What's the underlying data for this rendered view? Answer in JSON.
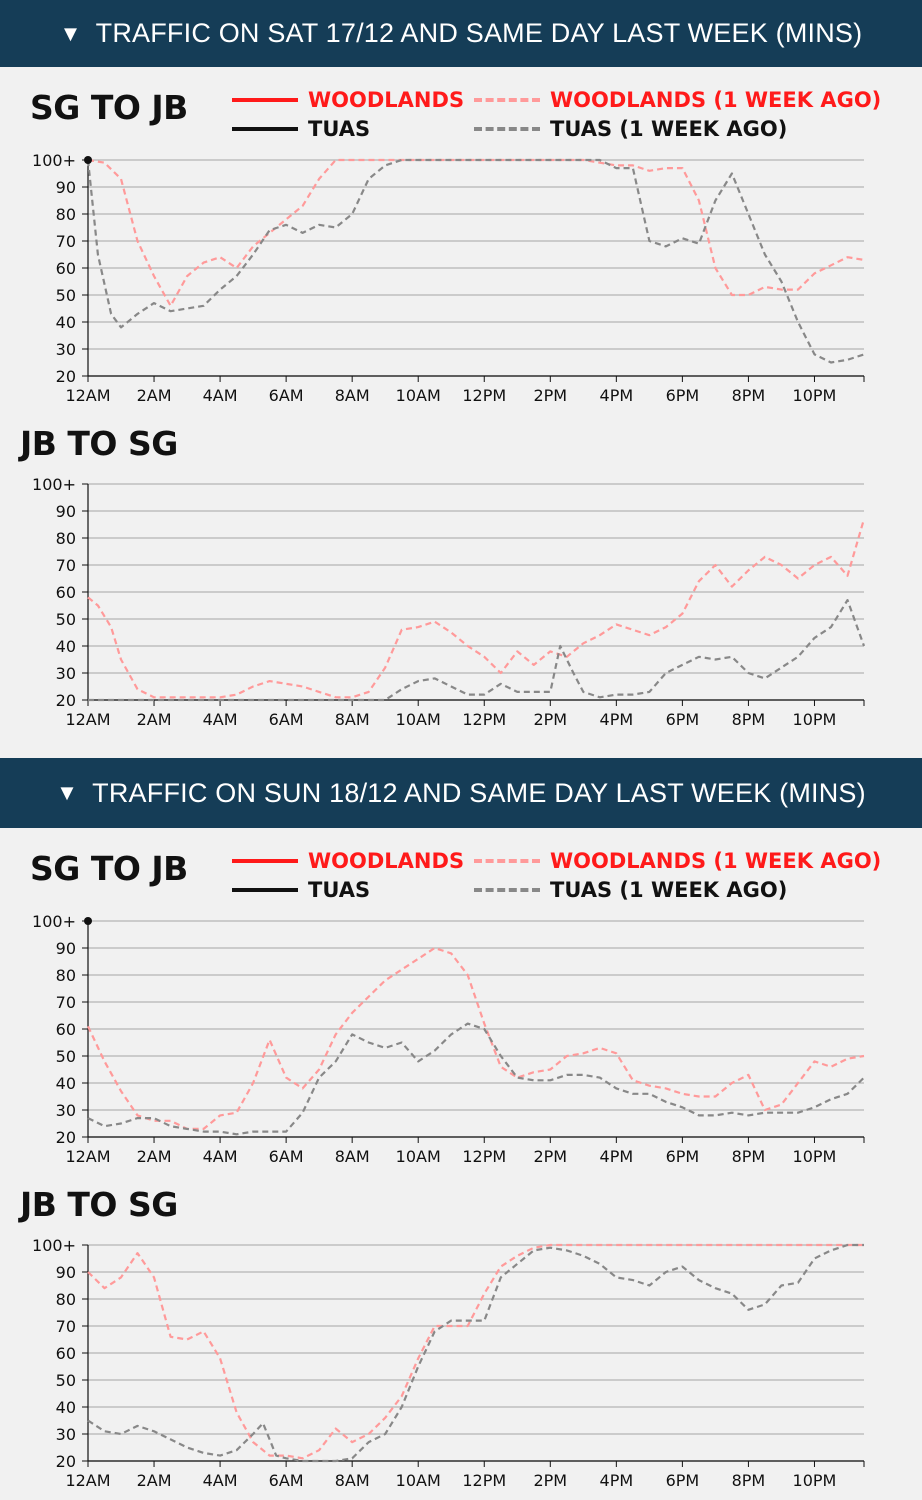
{
  "banners": [
    {
      "text": "TRAFFIC ON SAT 17/12 AND SAME DAY LAST WEEK (MINS)"
    },
    {
      "text": "TRAFFIC ON SUN 18/12 AND SAME DAY LAST WEEK (MINS)"
    }
  ],
  "legend": {
    "woodlands": "WOODLANDS",
    "woodlands_prev": "WOODLANDS (1 WEEK AGO)",
    "tuas": "TUAS",
    "tuas_prev": "TUAS (1 WEEK AGO)"
  },
  "colors": {
    "woodlands": "#ff1a1a",
    "woodlands_prev": "#ff9a9a",
    "tuas": "#111111",
    "tuas_prev": "#888888"
  },
  "chart_data": [
    {
      "type": "line",
      "day": "sat",
      "title": "SG TO JB",
      "ylim": [
        20,
        100
      ],
      "yticks": [
        "20",
        "30",
        "40",
        "50",
        "60",
        "70",
        "80",
        "90",
        "100+"
      ],
      "xticks": [
        "12AM",
        "2AM",
        "4AM",
        "6AM",
        "8AM",
        "10AM",
        "12PM",
        "2PM",
        "4PM",
        "6PM",
        "8PM",
        "10PM"
      ],
      "series": [
        {
          "name": "WOODLANDS (1 WEEK AGO)",
          "x": [
            0,
            0.5,
            1,
            1.5,
            2,
            2.5,
            3,
            3.5,
            4,
            4.5,
            5,
            5.5,
            6,
            6.5,
            7,
            7.5,
            8,
            8.5,
            9,
            10,
            11,
            12,
            13,
            14,
            15,
            15.5,
            16,
            16.5,
            17,
            17.5,
            18,
            18.5,
            19,
            19.5,
            20,
            20.5,
            21,
            21.5,
            22,
            22.5,
            23,
            23.5
          ],
          "y": [
            100,
            99,
            93,
            70,
            57,
            46,
            57,
            62,
            64,
            60,
            68,
            73,
            78,
            83,
            93,
            100,
            100,
            100,
            100,
            100,
            100,
            100,
            100,
            100,
            100,
            99,
            98,
            98,
            96,
            97,
            97,
            85,
            60,
            50,
            50,
            53,
            52,
            52,
            58,
            61,
            64,
            63
          ]
        },
        {
          "name": "TUAS (1 WEEK AGO)",
          "x": [
            0,
            0.3,
            0.7,
            1,
            1.5,
            2,
            2.5,
            3,
            3.5,
            4,
            4.5,
            5,
            5.5,
            6,
            6.5,
            7,
            7.5,
            8,
            8.5,
            9,
            9.5,
            10,
            12,
            14,
            15,
            15.5,
            16,
            16.5,
            17,
            17.5,
            18,
            18.5,
            19,
            19.5,
            20,
            20.5,
            21,
            21.5,
            22,
            22.5,
            23,
            23.5
          ],
          "y": [
            100,
            65,
            43,
            38,
            43,
            47,
            44,
            45,
            46,
            52,
            57,
            65,
            74,
            76,
            73,
            76,
            75,
            80,
            93,
            98,
            100,
            100,
            100,
            100,
            100,
            100,
            97,
            97,
            70,
            68,
            71,
            69,
            85,
            95,
            80,
            65,
            55,
            40,
            28,
            25,
            26,
            28
          ]
        }
      ]
    },
    {
      "type": "line",
      "day": "sat",
      "title": "JB TO SG",
      "ylim": [
        20,
        100
      ],
      "yticks": [
        "20",
        "30",
        "40",
        "50",
        "60",
        "70",
        "80",
        "90",
        "100+"
      ],
      "xticks": [
        "12AM",
        "2AM",
        "4AM",
        "6AM",
        "8AM",
        "10AM",
        "12PM",
        "2PM",
        "4PM",
        "6PM",
        "8PM",
        "10PM"
      ],
      "series": [
        {
          "name": "WOODLANDS (1 WEEK AGO)",
          "x": [
            0,
            0.3,
            0.7,
            1,
            1.5,
            2,
            3,
            4,
            4.5,
            5,
            5.5,
            6,
            6.5,
            7,
            7.5,
            8,
            8.5,
            9,
            9.5,
            10,
            10.5,
            11,
            11.5,
            12,
            12.5,
            13,
            13.5,
            14,
            14.5,
            15,
            15.5,
            16,
            16.5,
            17,
            17.5,
            18,
            18.5,
            19,
            19.5,
            20,
            20.5,
            21,
            21.5,
            22,
            22.5,
            23,
            23.5
          ],
          "y": [
            58,
            55,
            47,
            35,
            24,
            21,
            21,
            21,
            22,
            25,
            27,
            26,
            25,
            23,
            21,
            21,
            23,
            32,
            46,
            47,
            49,
            45,
            40,
            36,
            30,
            38,
            33,
            38,
            36,
            41,
            44,
            48,
            46,
            44,
            47,
            52,
            64,
            70,
            62,
            68,
            73,
            70,
            65,
            70,
            73,
            66,
            87
          ]
        },
        {
          "name": "TUAS (1 WEEK AGO)",
          "x": [
            0,
            2,
            4,
            6,
            8,
            9,
            9.5,
            10,
            10.5,
            11,
            11.5,
            12,
            12.5,
            13,
            13.5,
            14,
            14.3,
            14.7,
            15,
            15.5,
            16,
            16.5,
            17,
            17.5,
            18,
            18.5,
            19,
            19.5,
            20,
            20.5,
            21,
            21.5,
            22,
            22.5,
            23,
            23.5
          ],
          "y": [
            20,
            20,
            20,
            20,
            20,
            20,
            24,
            27,
            28,
            25,
            22,
            22,
            26,
            23,
            23,
            23,
            40,
            30,
            23,
            21,
            22,
            22,
            23,
            30,
            33,
            36,
            35,
            36,
            30,
            28,
            32,
            36,
            43,
            47,
            57,
            40
          ]
        }
      ]
    },
    {
      "type": "line",
      "day": "sun",
      "title": "SG TO JB",
      "ylim": [
        20,
        100
      ],
      "yticks": [
        "20",
        "30",
        "40",
        "50",
        "60",
        "70",
        "80",
        "90",
        "100+"
      ],
      "xticks": [
        "12AM",
        "2AM",
        "4AM",
        "6AM",
        "8AM",
        "10AM",
        "12PM",
        "2PM",
        "4PM",
        "6PM",
        "8PM",
        "10PM"
      ],
      "series": [
        {
          "name": "WOODLANDS (1 WEEK AGO)",
          "x": [
            0,
            0.5,
            1,
            1.5,
            2,
            2.5,
            3,
            3.5,
            4,
            4.5,
            5,
            5.5,
            6,
            6.5,
            7,
            7.5,
            8,
            8.5,
            9,
            9.5,
            10,
            10.5,
            11,
            11.5,
            12,
            12.5,
            13,
            13.5,
            14,
            14.5,
            15,
            15.5,
            16,
            16.5,
            17,
            17.5,
            18,
            18.5,
            19,
            19.5,
            20,
            20.5,
            21,
            21.5,
            22,
            22.5,
            23,
            23.5
          ],
          "y": [
            61,
            48,
            37,
            28,
            26,
            26,
            23,
            23,
            28,
            29,
            40,
            56,
            42,
            38,
            45,
            58,
            66,
            72,
            78,
            82,
            86,
            90,
            88,
            80,
            62,
            46,
            42,
            44,
            45,
            50,
            51,
            53,
            51,
            41,
            39,
            38,
            36,
            35,
            35,
            40,
            43,
            30,
            32,
            40,
            48,
            46,
            49,
            50
          ]
        },
        {
          "name": "TUAS (1 WEEK AGO)",
          "x": [
            0,
            0.5,
            1,
            1.5,
            2,
            2.5,
            3,
            3.5,
            4,
            4.5,
            5,
            5.5,
            6,
            6.5,
            7,
            7.5,
            8,
            8.5,
            9,
            9.5,
            10,
            10.5,
            11,
            11.5,
            12,
            12.5,
            13,
            13.5,
            14,
            14.5,
            15,
            15.5,
            16,
            16.5,
            17,
            17.5,
            18,
            18.5,
            19,
            19.5,
            20,
            20.5,
            21,
            21.5,
            22,
            22.5,
            23,
            23.5
          ],
          "y": [
            27,
            24,
            25,
            27,
            27,
            24,
            23,
            22,
            22,
            21,
            22,
            22,
            22,
            29,
            42,
            48,
            58,
            55,
            53,
            55,
            48,
            52,
            58,
            62,
            60,
            50,
            42,
            41,
            41,
            43,
            43,
            42,
            38,
            36,
            36,
            33,
            31,
            28,
            28,
            29,
            28,
            29,
            29,
            29,
            31,
            34,
            36,
            42
          ]
        }
      ]
    },
    {
      "type": "line",
      "day": "sun",
      "title": "JB TO SG",
      "ylim": [
        20,
        100
      ],
      "yticks": [
        "20",
        "30",
        "40",
        "50",
        "60",
        "70",
        "80",
        "90",
        "100+"
      ],
      "xticks": [
        "12AM",
        "2AM",
        "4AM",
        "6AM",
        "8AM",
        "10AM",
        "12PM",
        "2PM",
        "4PM",
        "6PM",
        "8PM",
        "10PM"
      ],
      "series": [
        {
          "name": "WOODLANDS (1 WEEK AGO)",
          "x": [
            0,
            0.5,
            1,
            1.5,
            2,
            2.5,
            3,
            3.5,
            4,
            4.5,
            5,
            5.5,
            6,
            6.5,
            7,
            7.5,
            8,
            8.5,
            9,
            9.5,
            10,
            10.5,
            11,
            11.5,
            12,
            12.5,
            13,
            13.5,
            14,
            16,
            18,
            20,
            22,
            23.5
          ],
          "y": [
            90,
            84,
            88,
            97,
            88,
            66,
            65,
            68,
            58,
            38,
            27,
            22,
            22,
            21,
            24,
            32,
            27,
            30,
            36,
            44,
            58,
            70,
            70,
            70,
            82,
            92,
            96,
            99,
            100,
            100,
            100,
            100,
            100,
            100
          ]
        },
        {
          "name": "TUAS (1 WEEK AGO)",
          "x": [
            0,
            0.5,
            1,
            1.5,
            2,
            2.5,
            3,
            3.5,
            4,
            4.5,
            5,
            5.3,
            5.7,
            6,
            6.5,
            7,
            7.5,
            8,
            8.5,
            9,
            9.5,
            10,
            10.5,
            11,
            11.5,
            12,
            12.5,
            13,
            13.5,
            14,
            14.5,
            15,
            15.5,
            16,
            16.5,
            17,
            17.5,
            18,
            18.5,
            19,
            19.5,
            20,
            20.5,
            21,
            21.5,
            22,
            22.5,
            23,
            23.5
          ],
          "y": [
            35,
            31,
            30,
            33,
            31,
            28,
            25,
            23,
            22,
            24,
            30,
            34,
            22,
            21,
            20,
            20,
            20,
            21,
            27,
            30,
            40,
            55,
            68,
            72,
            72,
            72,
            88,
            93,
            98,
            99,
            98,
            96,
            93,
            88,
            87,
            85,
            90,
            92,
            87,
            84,
            82,
            76,
            78,
            85,
            86,
            95,
            98,
            100,
            100
          ]
        }
      ]
    }
  ]
}
